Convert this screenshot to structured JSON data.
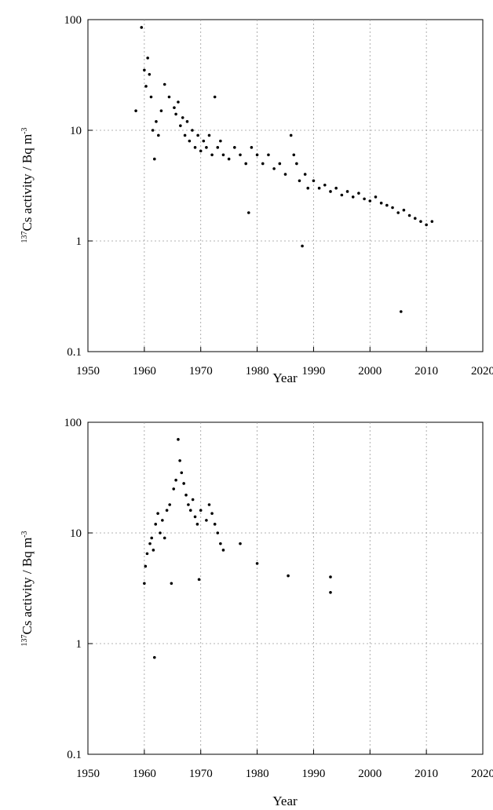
{
  "chart_data": [
    {
      "type": "scatter",
      "title": "",
      "xlabel": "Year",
      "ylabel": {
        "superscript": "137",
        "text": "Cs activity / Bq m",
        "unit_exponent": "-3"
      },
      "xlim": [
        1950,
        2020
      ],
      "ylim": [
        0.1,
        100
      ],
      "y_scale": "log",
      "grid": true,
      "x_ticks": [
        "1950",
        "1960",
        "1970",
        "1980",
        "1990",
        "2000",
        "2010",
        "2020"
      ],
      "y_ticks": [
        "0.1",
        "1",
        "10",
        "100"
      ],
      "series": [
        {
          "points": [
            [
              1958.5,
              15
            ],
            [
              1959.5,
              85
            ],
            [
              1960.0,
              35
            ],
            [
              1960.3,
              25
            ],
            [
              1960.6,
              45
            ],
            [
              1960.9,
              32
            ],
            [
              1961.2,
              20
            ],
            [
              1961.5,
              10
            ],
            [
              1961.8,
              5.5
            ],
            [
              1962.1,
              12
            ],
            [
              1962.5,
              9
            ],
            [
              1963.0,
              15
            ],
            [
              1963.6,
              26
            ],
            [
              1964.4,
              20
            ],
            [
              1965.3,
              16
            ],
            [
              1965.6,
              14
            ],
            [
              1966.0,
              18
            ],
            [
              1966.4,
              11
            ],
            [
              1966.8,
              13
            ],
            [
              1967.2,
              9
            ],
            [
              1967.6,
              12
            ],
            [
              1968.0,
              8
            ],
            [
              1968.5,
              10
            ],
            [
              1969.0,
              7
            ],
            [
              1969.5,
              9
            ],
            [
              1970.0,
              6.5
            ],
            [
              1970.5,
              8
            ],
            [
              1971.0,
              7
            ],
            [
              1971.5,
              9
            ],
            [
              1972.0,
              6
            ],
            [
              1972.5,
              20
            ],
            [
              1973.0,
              7
            ],
            [
              1973.5,
              8
            ],
            [
              1974.0,
              6
            ],
            [
              1975.0,
              5.5
            ],
            [
              1976.0,
              7
            ],
            [
              1977.0,
              6
            ],
            [
              1978.0,
              5
            ],
            [
              1978.5,
              1.8
            ],
            [
              1979.0,
              7
            ],
            [
              1980.0,
              6
            ],
            [
              1981.0,
              5
            ],
            [
              1982.0,
              6
            ],
            [
              1983.0,
              4.5
            ],
            [
              1984.0,
              5
            ],
            [
              1985.0,
              4
            ],
            [
              1986.0,
              9
            ],
            [
              1986.5,
              6
            ],
            [
              1987.0,
              5
            ],
            [
              1987.5,
              3.5
            ],
            [
              1988.0,
              0.9
            ],
            [
              1988.5,
              4
            ],
            [
              1989.0,
              3
            ],
            [
              1990.0,
              3.5
            ],
            [
              1991.0,
              3
            ],
            [
              1992.0,
              3.2
            ],
            [
              1993.0,
              2.8
            ],
            [
              1994.0,
              3
            ],
            [
              1995.0,
              2.6
            ],
            [
              1996.0,
              2.8
            ],
            [
              1997.0,
              2.5
            ],
            [
              1998.0,
              2.7
            ],
            [
              1999.0,
              2.4
            ],
            [
              2000.0,
              2.3
            ],
            [
              2001.0,
              2.5
            ],
            [
              2002.0,
              2.2
            ],
            [
              2003.0,
              2.1
            ],
            [
              2004.0,
              2.0
            ],
            [
              2005.0,
              1.8
            ],
            [
              2005.5,
              0.23
            ],
            [
              2006.0,
              1.9
            ],
            [
              2007.0,
              1.7
            ],
            [
              2008.0,
              1.6
            ],
            [
              2009.0,
              1.5
            ],
            [
              2010.0,
              1.4
            ],
            [
              2011.0,
              1.5
            ]
          ]
        }
      ]
    },
    {
      "type": "scatter",
      "title": "",
      "xlabel": "Year",
      "ylabel": {
        "superscript": "137",
        "text": "Cs activity / Bq m",
        "unit_exponent": "-3"
      },
      "xlim": [
        1950,
        2020
      ],
      "ylim": [
        0.1,
        100
      ],
      "y_scale": "log",
      "grid": true,
      "x_ticks": [
        "1950",
        "1960",
        "1970",
        "1980",
        "1990",
        "2000",
        "2010",
        "2020"
      ],
      "y_ticks": [
        "0.1",
        "1",
        "10",
        "100"
      ],
      "series": [
        {
          "points": [
            [
              1960.0,
              3.5
            ],
            [
              1960.2,
              5
            ],
            [
              1960.5,
              6.5
            ],
            [
              1961.0,
              8
            ],
            [
              1961.3,
              9
            ],
            [
              1961.6,
              7
            ],
            [
              1961.8,
              0.75
            ],
            [
              1962.0,
              12
            ],
            [
              1962.4,
              15
            ],
            [
              1962.8,
              10
            ],
            [
              1963.2,
              13
            ],
            [
              1963.6,
              9
            ],
            [
              1964.0,
              16
            ],
            [
              1964.5,
              18
            ],
            [
              1964.8,
              3.5
            ],
            [
              1965.2,
              25
            ],
            [
              1965.6,
              30
            ],
            [
              1966.0,
              70
            ],
            [
              1966.3,
              45
            ],
            [
              1966.6,
              35
            ],
            [
              1967.0,
              28
            ],
            [
              1967.4,
              22
            ],
            [
              1967.8,
              18
            ],
            [
              1968.2,
              16
            ],
            [
              1968.6,
              20
            ],
            [
              1969.0,
              14
            ],
            [
              1969.4,
              12
            ],
            [
              1969.7,
              3.8
            ],
            [
              1970.0,
              16
            ],
            [
              1971.0,
              13
            ],
            [
              1971.5,
              18
            ],
            [
              1972.0,
              15
            ],
            [
              1972.5,
              12
            ],
            [
              1973.0,
              10
            ],
            [
              1973.5,
              8
            ],
            [
              1974.0,
              7
            ],
            [
              1977.0,
              8
            ],
            [
              1980.0,
              5.3
            ],
            [
              1985.5,
              4.1
            ],
            [
              1993.0,
              4.0
            ],
            [
              1993.0,
              2.9
            ]
          ]
        }
      ]
    }
  ]
}
